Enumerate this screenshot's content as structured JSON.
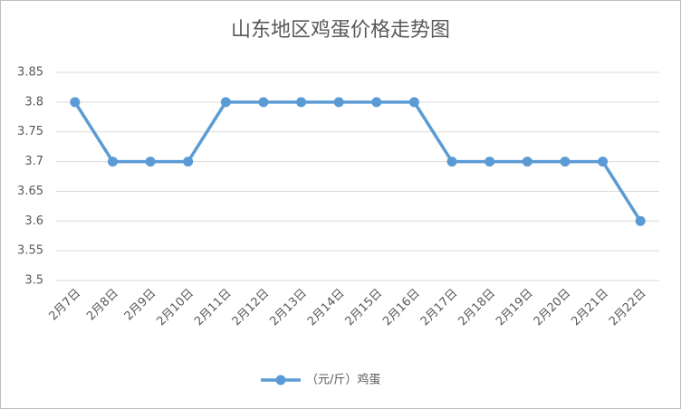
{
  "chart_data": {
    "type": "line",
    "title": "山东地区鸡蛋价格走势图",
    "categories": [
      "2月7日",
      "2月8日",
      "2月9日",
      "2月10日",
      "2月11日",
      "2月12日",
      "2月13日",
      "2月14日",
      "2月15日",
      "2月16日",
      "2月17日",
      "2月18日",
      "2月19日",
      "2月20日",
      "2月21日",
      "2月22日"
    ],
    "series": [
      {
        "name": "（元/斤）鸡蛋",
        "color": "#5b9bd5",
        "values": [
          3.8,
          3.7,
          3.7,
          3.7,
          3.8,
          3.8,
          3.8,
          3.8,
          3.8,
          3.8,
          3.7,
          3.7,
          3.7,
          3.7,
          3.7,
          3.6
        ]
      }
    ],
    "ylim": [
      3.5,
      3.85
    ],
    "yticks": [
      3.5,
      3.55,
      3.6,
      3.65,
      3.7,
      3.75,
      3.8,
      3.85
    ],
    "grid": true,
    "legend": "bottom"
  }
}
